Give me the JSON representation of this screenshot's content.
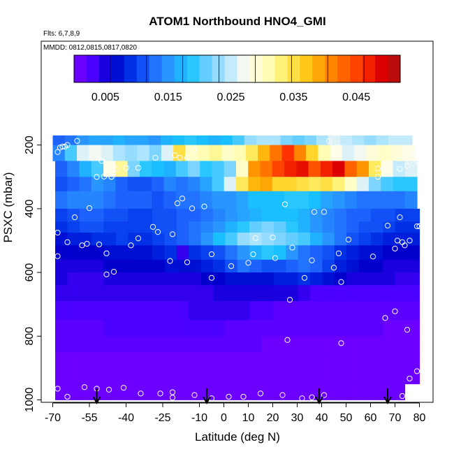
{
  "chart_data": {
    "type": "heatmap",
    "title": "ATOM1 Northbound HNO4_GMI",
    "subtitle_flights": "Flts: 6,7,8,9",
    "subtitle_dates": "MMDD: 0812,0815,0817,0820",
    "xlabel": "Latitude (deg N)",
    "ylabel": "PSXC (mbar)",
    "xlim": [
      -70,
      80
    ],
    "ylim": [
      1000,
      100
    ],
    "x_ticks": [
      -70,
      -55,
      -40,
      -25,
      -10,
      0,
      10,
      20,
      30,
      40,
      50,
      60,
      70,
      80
    ],
    "y_ticks": [
      200,
      400,
      600,
      800,
      1000
    ],
    "colorbar": {
      "range": [
        0,
        0.052
      ],
      "tick_values": [
        0.005,
        0.015,
        0.025,
        0.035,
        0.045
      ],
      "tick_labels": [
        "0.005",
        "0.015",
        "0.025",
        "0.035",
        "0.045"
      ],
      "colors": [
        "#7b00ff",
        "#4a00ff",
        "#0000cc",
        "#0033e6",
        "#1f66ff",
        "#2a9bff",
        "#18c4ff",
        "#6fd0ff",
        "#b8e8ff",
        "#fffcee",
        "#ffffbf",
        "#ffee66",
        "#ffcc1a",
        "#ff9900",
        "#ff6600",
        "#ff3300",
        "#dd0000",
        "#aa1111"
      ]
    },
    "profile_arrows_lat": [
      -52,
      -7,
      39,
      67
    ],
    "grid": false,
    "legend": "colorbar at top",
    "layers": [
      {
        "p": [
          170,
          200
        ],
        "lat": [
          -70,
          77
        ],
        "values": [
          0.012,
          0.013,
          0.015,
          0.016,
          0.016,
          0.017,
          0.016,
          0.016,
          0.015,
          0.017,
          0.018,
          0.019,
          0.018,
          0.017,
          0.018,
          0.02,
          0.023,
          0.024,
          0.024,
          0.022,
          0.021,
          0.022,
          0.024,
          0.026,
          0.025,
          0.024,
          0.023,
          0.024,
          0.025,
          0.025
        ]
      },
      {
        "p": [
          200,
          250
        ],
        "lat": [
          -70,
          78
        ],
        "values": [
          0.014,
          0.02,
          0.026,
          0.027,
          0.026,
          0.024,
          0.023,
          0.024,
          0.022,
          0.026,
          0.035,
          0.03,
          0.031,
          0.032,
          0.03,
          0.031,
          0.034,
          0.038,
          0.042,
          0.046,
          0.041,
          0.036,
          0.031,
          0.028,
          0.026,
          0.027,
          0.029,
          0.03,
          0.029,
          0.028
        ]
      },
      {
        "p": [
          250,
          300
        ],
        "lat": [
          -69,
          79
        ],
        "values": [
          0.012,
          0.014,
          0.017,
          0.02,
          0.028,
          0.032,
          0.022,
          0.019,
          0.018,
          0.017,
          0.02,
          0.022,
          0.019,
          0.02,
          0.022,
          0.03,
          0.04,
          0.042,
          0.045,
          0.047,
          0.048,
          0.044,
          0.047,
          0.049,
          0.043,
          0.04,
          0.034,
          0.028,
          0.025,
          0.026
        ]
      },
      {
        "p": [
          300,
          345
        ],
        "lat": [
          -69,
          79
        ],
        "values": [
          0.011,
          0.012,
          0.013,
          0.015,
          0.014,
          0.012,
          0.011,
          0.011,
          0.012,
          0.014,
          0.013,
          0.014,
          0.016,
          0.02,
          0.026,
          0.034,
          0.038,
          0.039,
          0.036,
          0.036,
          0.035,
          0.034,
          0.035,
          0.033,
          0.03,
          0.026,
          0.022,
          0.02,
          0.019,
          0.019
        ]
      },
      {
        "p": [
          345,
          400
        ],
        "lat": [
          -69,
          79
        ],
        "values": [
          0.013,
          0.014,
          0.014,
          0.014,
          0.013,
          0.012,
          0.012,
          0.012,
          0.011,
          0.012,
          0.013,
          0.013,
          0.014,
          0.015,
          0.015,
          0.016,
          0.018,
          0.018,
          0.018,
          0.019,
          0.019,
          0.018,
          0.016,
          0.015,
          0.014,
          0.013,
          0.013,
          0.013,
          0.013,
          0.014
        ]
      },
      {
        "p": [
          400,
          440
        ],
        "lat": [
          -69,
          80
        ],
        "values": [
          0.01,
          0.011,
          0.012,
          0.012,
          0.011,
          0.011,
          0.01,
          0.01,
          0.011,
          0.011,
          0.012,
          0.012,
          0.013,
          0.014,
          0.015,
          0.016,
          0.017,
          0.018,
          0.018,
          0.018,
          0.017,
          0.015,
          0.014,
          0.013,
          0.012,
          0.012,
          0.011,
          0.011,
          0.01,
          0.01
        ]
      },
      {
        "p": [
          440,
          475
        ],
        "lat": [
          -69,
          80
        ],
        "values": [
          0.009,
          0.01,
          0.011,
          0.011,
          0.01,
          0.01,
          0.01,
          0.01,
          0.011,
          0.011,
          0.012,
          0.013,
          0.014,
          0.015,
          0.017,
          0.019,
          0.021,
          0.022,
          0.021,
          0.019,
          0.017,
          0.015,
          0.014,
          0.013,
          0.012,
          0.011,
          0.011,
          0.01,
          0.009,
          0.009
        ]
      },
      {
        "p": [
          475,
          515
        ],
        "lat": [
          -69,
          80
        ],
        "values": [
          0.007,
          0.008,
          0.008,
          0.009,
          0.009,
          0.01,
          0.009,
          0.009,
          0.01,
          0.011,
          0.012,
          0.013,
          0.015,
          0.018,
          0.02,
          0.023,
          0.024,
          0.023,
          0.022,
          0.021,
          0.02,
          0.017,
          0.015,
          0.013,
          0.011,
          0.01,
          0.009,
          0.008,
          0.008,
          0.008
        ]
      },
      {
        "p": [
          515,
          560
        ],
        "lat": [
          -69,
          80
        ],
        "values": [
          0.006,
          0.006,
          0.006,
          0.006,
          0.007,
          0.007,
          0.007,
          0.007,
          0.008,
          0.009,
          0.004,
          0.009,
          0.01,
          0.011,
          0.013,
          0.015,
          0.017,
          0.019,
          0.018,
          0.015,
          0.013,
          0.012,
          0.011,
          0.009,
          0.008,
          0.007,
          0.007,
          0.006,
          0.006,
          0.006
        ]
      },
      {
        "p": [
          560,
          600
        ],
        "lat": [
          -69,
          80
        ],
        "values": [
          0.005,
          0.005,
          0.005,
          0.005,
          0.006,
          0.006,
          0.006,
          0.006,
          0.006,
          0.007,
          0.007,
          0.007,
          0.008,
          0.009,
          0.011,
          0.013,
          0.012,
          0.011,
          0.011,
          0.012,
          0.013,
          0.012,
          0.01,
          0.008,
          0.007,
          0.006,
          0.006,
          0.005,
          0.005,
          0.005
        ]
      },
      {
        "p": [
          600,
          640
        ],
        "lat": [
          -69,
          80
        ],
        "values": [
          0.005,
          0.004,
          0.004,
          0.004,
          0.005,
          0.005,
          0.005,
          0.005,
          0.005,
          0.005,
          0.005,
          0.005,
          0.006,
          0.006,
          0.007,
          0.007,
          0.007,
          0.007,
          0.008,
          0.008,
          0.009,
          0.008,
          0.007,
          0.006,
          0.005,
          0.005,
          0.005,
          0.005,
          0.004,
          0.004
        ]
      },
      {
        "p": [
          640,
          690
        ],
        "lat": [
          -69,
          80
        ],
        "values": [
          0.004,
          0.004,
          0.004,
          0.004,
          0.004,
          0.004,
          0.004,
          0.004,
          0.004,
          0.004,
          0.004,
          0.004,
          0.004,
          0.005,
          0.005,
          0.005,
          0.005,
          0.005,
          0.005,
          0.005,
          0.004,
          0.003,
          0.003,
          0.003,
          0.003,
          0.003,
          0.003,
          0.003,
          0.003,
          0.003
        ]
      },
      {
        "p": [
          690,
          750
        ],
        "lat": [
          -69,
          80
        ],
        "values": [
          0.003,
          0.003,
          0.003,
          0.003,
          0.003,
          0.003,
          0.003,
          0.003,
          0.003,
          0.003,
          0.003,
          0.004,
          0.004,
          0.004,
          0.004,
          0.004,
          0.003,
          0.003,
          0.002,
          0.002,
          0.002,
          0.002,
          0.002,
          0.002,
          0.002,
          0.002,
          0.002,
          0.002,
          0.002,
          0.002
        ]
      },
      {
        "p": [
          750,
          800
        ],
        "lat": [
          -69,
          80
        ],
        "values": [
          0.002,
          0.002,
          0.002,
          0.002,
          0.003,
          0.003,
          0.003,
          0.003,
          0.003,
          0.003,
          0.003,
          0.003,
          0.003,
          0.003,
          0.002,
          0.002,
          0.002,
          0.002,
          0.002,
          0.002,
          0.002,
          0.002,
          0.002,
          0.002,
          0.002,
          0.002,
          0.002,
          0.001,
          0.001,
          0.001
        ]
      },
      {
        "p": [
          800,
          850
        ],
        "lat": [
          -69,
          80
        ],
        "values": [
          0.002,
          0.002,
          0.002,
          0.002,
          0.002,
          0.002,
          0.002,
          0.002,
          0.002,
          0.002,
          0.002,
          0.002,
          0.002,
          0.002,
          0.002,
          0.002,
          0.002,
          0.001,
          0.001,
          0.001,
          0.001,
          0.001,
          0.001,
          0.001,
          0.001,
          0.001,
          0.001,
          0.001,
          0.001,
          0.001
        ]
      },
      {
        "p": [
          850,
          900
        ],
        "lat": [
          -69,
          80
        ],
        "values": [
          0.001,
          0.001,
          0.001,
          0.001,
          0.001,
          0.001,
          0.001,
          0.001,
          0.001,
          0.001,
          0.001,
          0.001,
          0.001,
          0.001,
          0.001,
          0.001,
          0.001,
          0.001,
          0.001,
          0.001,
          0.001,
          0.001,
          0.001,
          0.001,
          0.001,
          0.001,
          0.001,
          0.001,
          0.001,
          0.001
        ]
      },
      {
        "p": [
          900,
          950
        ],
        "lat": [
          -69,
          80
        ],
        "values": [
          0.001,
          0.001,
          0.001,
          0.001,
          0.001,
          0.001,
          0.001,
          0.001,
          0.001,
          0.001,
          0.001,
          0.001,
          0.001,
          0.001,
          0.001,
          0.001,
          0.001,
          0.001,
          0.001,
          0.001,
          0.001,
          0.001,
          0.001,
          0.001,
          0.001,
          0.001,
          0.001,
          0.001,
          0.001,
          0.001
        ]
      },
      {
        "p": [
          950,
          1000
        ],
        "lat": [
          -69,
          74
        ],
        "values": [
          0.001,
          0.001,
          0.001,
          0.001,
          0.001,
          0.001,
          0.001,
          0.001,
          0.001,
          0.001,
          0.001,
          0.001,
          0.001,
          0.001,
          0.001,
          0.001,
          0.001,
          0.001,
          0.001,
          0.001,
          0.001,
          0.001,
          0.001,
          0.001,
          0.001,
          0.001,
          0.001,
          0.001,
          0.001,
          0.001
        ]
      }
    ],
    "obs_points": [
      [
        -68,
        222
      ],
      [
        -67,
        208
      ],
      [
        -66,
        205
      ],
      [
        -65,
        205
      ],
      [
        -64,
        200
      ],
      [
        -60,
        187
      ],
      [
        -52,
        300
      ],
      [
        -49,
        299
      ],
      [
        -50,
        250
      ],
      [
        -46,
        300
      ],
      [
        -44,
        275
      ],
      [
        -40,
        272
      ],
      [
        -35,
        272
      ],
      [
        -28,
        240
      ],
      [
        -20,
        232
      ],
      [
        -18,
        240
      ],
      [
        -12,
        216
      ],
      [
        -15,
        240
      ],
      [
        -19,
        383
      ],
      [
        -17,
        368
      ],
      [
        -13,
        399
      ],
      [
        -8,
        393
      ],
      [
        -55,
        398
      ],
      [
        -61,
        427
      ],
      [
        -68,
        475
      ],
      [
        -64,
        505
      ],
      [
        -58,
        515
      ],
      [
        -56,
        510
      ],
      [
        -51,
        512
      ],
      [
        -48,
        540
      ],
      [
        -38,
        515
      ],
      [
        -35,
        493
      ],
      [
        -29,
        457
      ],
      [
        -27,
        473
      ],
      [
        -21,
        480
      ],
      [
        -45,
        598
      ],
      [
        -48,
        606
      ],
      [
        -22,
        564
      ],
      [
        -15,
        568
      ],
      [
        -5,
        543
      ],
      [
        -5,
        617
      ],
      [
        3,
        580
      ],
      [
        10,
        570
      ],
      [
        13,
        492
      ],
      [
        12,
        543
      ],
      [
        21,
        555
      ],
      [
        20,
        490
      ],
      [
        28,
        522
      ],
      [
        36,
        562
      ],
      [
        33,
        617
      ],
      [
        25,
        386
      ],
      [
        37,
        410
      ],
      [
        41,
        410
      ],
      [
        43,
        188
      ],
      [
        45,
        585
      ],
      [
        47,
        540
      ],
      [
        48,
        630
      ],
      [
        51,
        497
      ],
      [
        61,
        550
      ],
      [
        67,
        453
      ],
      [
        70,
        525
      ],
      [
        71,
        500
      ],
      [
        73,
        505
      ],
      [
        74,
        515
      ],
      [
        76,
        500
      ],
      [
        79,
        455
      ],
      [
        72,
        427
      ],
      [
        78,
        232
      ],
      [
        79,
        250
      ],
      [
        80,
        455
      ],
      [
        72,
        275
      ],
      [
        75,
        265
      ],
      [
        63,
        274
      ],
      [
        63,
        300
      ],
      [
        -68,
        549
      ],
      [
        -68,
        965
      ],
      [
        -64,
        990
      ],
      [
        -57,
        960
      ],
      [
        -52,
        965
      ],
      [
        -47,
        968
      ],
      [
        -41,
        962
      ],
      [
        -34,
        980
      ],
      [
        -26,
        980
      ],
      [
        -21,
        993
      ],
      [
        -21,
        976
      ],
      [
        -12,
        985
      ],
      [
        -5,
        995
      ],
      [
        2,
        990
      ],
      [
        8,
        990
      ],
      [
        15,
        980
      ],
      [
        24,
        985
      ],
      [
        26,
        812
      ],
      [
        27,
        686
      ],
      [
        32,
        995
      ],
      [
        36,
        992
      ],
      [
        41,
        985
      ],
      [
        48,
        822
      ],
      [
        66,
        743
      ],
      [
        70,
        722
      ],
      [
        73,
        988
      ],
      [
        76,
        933
      ],
      [
        79,
        910
      ],
      [
        75,
        780
      ]
    ]
  }
}
